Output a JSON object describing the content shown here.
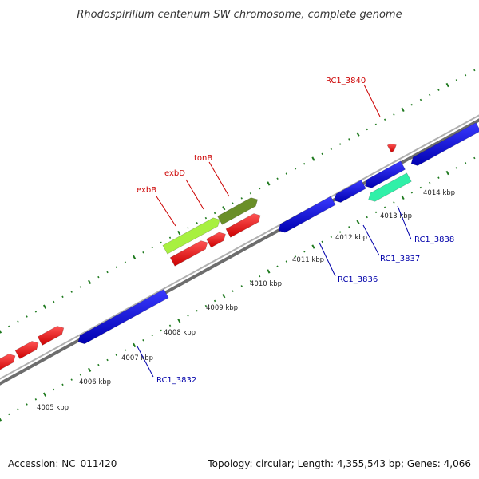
{
  "title": "Rhodospirillum centenum SW chromosome, complete genome",
  "footer": {
    "accession": "Accession: NC_011420",
    "summary": "Topology: circular; Length: 4,355,543 bp; Genes: 4,066"
  },
  "colors": {
    "backbone": "#8a8a8a",
    "tick": "#1f7a1f",
    "forward_gene": "#ee1111",
    "reverse_gene": "#1616e6",
    "label_red": "#cc0000",
    "label_blue": "#0000aa",
    "exbB": "#a8f040",
    "tonB": "#6a8f28",
    "teal": "#30f0a8"
  },
  "ticks": {
    "labels": [
      "4005 kbp",
      "4006 kbp",
      "4007 kbp",
      "4008 kbp",
      "4009 kbp",
      "4010 kbp",
      "4011 kbp",
      "4012 kbp",
      "4013 kbp",
      "4014 kbp"
    ],
    "positions_kbp": [
      4005,
      4006,
      4007,
      4008,
      4009,
      4010,
      4011,
      4012,
      4013,
      4014
    ]
  },
  "gene_labels": [
    {
      "text": "RC1_3840",
      "strand": "forward"
    },
    {
      "text": "tonB",
      "strand": "forward"
    },
    {
      "text": "exbD",
      "strand": "forward"
    },
    {
      "text": "exbB",
      "strand": "forward"
    },
    {
      "text": "RC1_3838",
      "strand": "reverse"
    },
    {
      "text": "RC1_3837",
      "strand": "reverse"
    },
    {
      "text": "RC1_3836",
      "strand": "reverse"
    },
    {
      "text": "RC1_3832",
      "strand": "reverse"
    }
  ]
}
